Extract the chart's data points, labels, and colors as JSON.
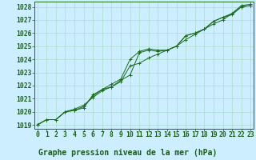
{
  "xlabel": "Graphe pression niveau de la mer (hPa)",
  "x": [
    0,
    1,
    2,
    3,
    4,
    5,
    6,
    7,
    8,
    9,
    10,
    11,
    12,
    13,
    14,
    15,
    16,
    17,
    18,
    19,
    20,
    21,
    22,
    23
  ],
  "line1": [
    1019.0,
    1019.4,
    1019.4,
    1020.0,
    1020.1,
    1020.3,
    1021.3,
    1021.7,
    1021.9,
    1022.4,
    1022.8,
    1024.5,
    1024.7,
    1024.6,
    1024.7,
    1025.0,
    1025.8,
    1026.0,
    1026.3,
    1026.9,
    1027.2,
    1027.4,
    1028.0,
    1028.1
  ],
  "line2": [
    1019.0,
    1019.4,
    1019.4,
    1020.0,
    1020.2,
    1020.5,
    1021.1,
    1021.6,
    1021.9,
    1022.3,
    1023.5,
    1023.7,
    1024.1,
    1024.4,
    1024.7,
    1025.0,
    1025.5,
    1025.9,
    1026.3,
    1026.7,
    1027.0,
    1027.5,
    1028.0,
    1028.1
  ],
  "line3": [
    1019.0,
    1019.4,
    1019.4,
    1020.0,
    1020.1,
    1020.4,
    1021.2,
    1021.7,
    1022.1,
    1022.5,
    1024.0,
    1024.6,
    1024.8,
    1024.7,
    1024.7,
    1025.0,
    1025.8,
    1026.0,
    1026.3,
    1026.9,
    1027.2,
    1027.5,
    1028.1,
    1028.2
  ],
  "ylim": [
    1018.7,
    1028.4
  ],
  "xlim": [
    -0.3,
    23.3
  ],
  "yticks": [
    1019,
    1020,
    1021,
    1022,
    1023,
    1024,
    1025,
    1026,
    1027,
    1028
  ],
  "xticks": [
    0,
    1,
    2,
    3,
    4,
    5,
    6,
    7,
    8,
    9,
    10,
    11,
    12,
    13,
    14,
    15,
    16,
    17,
    18,
    19,
    20,
    21,
    22,
    23
  ],
  "line_color": "#1a6b1a",
  "marker_color": "#1a6b1a",
  "bg_color": "#cceeff",
  "grid_color": "#aaddcc",
  "text_color": "#1a5c1a",
  "tick_fontsize": 5.8,
  "label_fontsize": 7.0
}
